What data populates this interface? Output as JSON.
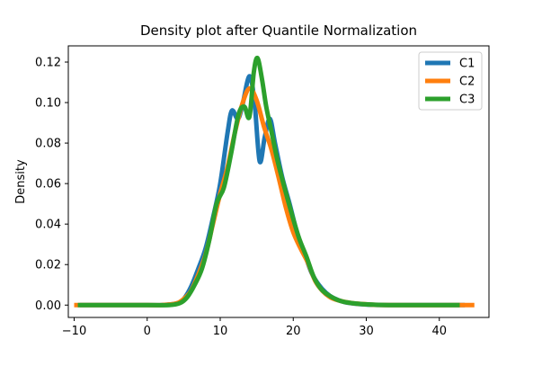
{
  "chart_data": {
    "type": "line",
    "title": "Density plot after Quantile Normalization",
    "xlabel": "",
    "ylabel": "Density",
    "xlim": [
      -10.8,
      46.8
    ],
    "ylim": [
      -0.0061,
      0.128
    ],
    "xticks": [
      -10,
      0,
      10,
      20,
      30,
      40
    ],
    "xtick_labels": [
      "−10",
      "0",
      "10",
      "20",
      "30",
      "40"
    ],
    "yticks": [
      0.0,
      0.02,
      0.04,
      0.06,
      0.08,
      0.1,
      0.12
    ],
    "ytick_labels": [
      "0.00",
      "0.02",
      "0.04",
      "0.06",
      "0.08",
      "0.10",
      "0.12"
    ],
    "grid": false,
    "legend_position": "top-right",
    "series": [
      {
        "name": "C1",
        "color": "#1f77b4",
        "points": [
          [
            -9.2,
            0
          ],
          [
            0,
            0
          ],
          [
            2,
            0
          ],
          [
            4,
            0.0008
          ],
          [
            5,
            0.003
          ],
          [
            6,
            0.009
          ],
          [
            7,
            0.018
          ],
          [
            8,
            0.028
          ],
          [
            9,
            0.043
          ],
          [
            10,
            0.06
          ],
          [
            11,
            0.085
          ],
          [
            11.6,
            0.096
          ],
          [
            12.4,
            0.092
          ],
          [
            13,
            0.098
          ],
          [
            14,
            0.113
          ],
          [
            14.7,
            0.1
          ],
          [
            15.4,
            0.071
          ],
          [
            16.1,
            0.083
          ],
          [
            16.8,
            0.092
          ],
          [
            17.5,
            0.08
          ],
          [
            18.5,
            0.063
          ],
          [
            19.5,
            0.05
          ],
          [
            20.5,
            0.036
          ],
          [
            21.5,
            0.026
          ],
          [
            22.5,
            0.016
          ],
          [
            23.5,
            0.01
          ],
          [
            24.5,
            0.006
          ],
          [
            25.5,
            0.0035
          ],
          [
            27,
            0.0015
          ],
          [
            29,
            0.0005
          ],
          [
            31,
            0.0001
          ],
          [
            34,
            0
          ],
          [
            43.5,
            0
          ]
        ]
      },
      {
        "name": "C2",
        "color": "#ff7f0e",
        "points": [
          [
            -10,
            0
          ],
          [
            0,
            0
          ],
          [
            2,
            0
          ],
          [
            4,
            0.0008
          ],
          [
            5,
            0.003
          ],
          [
            6,
            0.007
          ],
          [
            7,
            0.015
          ],
          [
            8,
            0.025
          ],
          [
            9,
            0.04
          ],
          [
            10,
            0.055
          ],
          [
            11,
            0.068
          ],
          [
            12,
            0.085
          ],
          [
            13,
            0.099
          ],
          [
            14,
            0.107
          ],
          [
            15,
            0.101
          ],
          [
            16,
            0.088
          ],
          [
            17,
            0.077
          ],
          [
            18,
            0.063
          ],
          [
            19,
            0.048
          ],
          [
            20,
            0.036
          ],
          [
            21,
            0.028
          ],
          [
            22,
            0.021
          ],
          [
            23,
            0.012
          ],
          [
            24,
            0.007
          ],
          [
            25,
            0.004
          ],
          [
            26,
            0.0025
          ],
          [
            28,
            0.001
          ],
          [
            30,
            0.0004
          ],
          [
            33,
            0
          ],
          [
            44.8,
            0
          ]
        ]
      },
      {
        "name": "C3",
        "color": "#2ca02c",
        "points": [
          [
            -9.5,
            0
          ],
          [
            0,
            0
          ],
          [
            3,
            0
          ],
          [
            4.5,
            0.001
          ],
          [
            5.5,
            0.004
          ],
          [
            6.5,
            0.01
          ],
          [
            7.5,
            0.018
          ],
          [
            8.5,
            0.032
          ],
          [
            9.5,
            0.05
          ],
          [
            10.5,
            0.058
          ],
          [
            11.5,
            0.075
          ],
          [
            12.5,
            0.094
          ],
          [
            13.3,
            0.098
          ],
          [
            14,
            0.093
          ],
          [
            14.6,
            0.115
          ],
          [
            15.1,
            0.122
          ],
          [
            15.7,
            0.112
          ],
          [
            16.3,
            0.098
          ],
          [
            17,
            0.086
          ],
          [
            17.8,
            0.072
          ],
          [
            18.8,
            0.058
          ],
          [
            19.8,
            0.045
          ],
          [
            20.8,
            0.033
          ],
          [
            21.8,
            0.024
          ],
          [
            22.8,
            0.014
          ],
          [
            23.8,
            0.008
          ],
          [
            25,
            0.0045
          ],
          [
            26.5,
            0.002
          ],
          [
            28.5,
            0.0008
          ],
          [
            31,
            0.0002
          ],
          [
            34,
            0
          ],
          [
            42.8,
            0
          ]
        ]
      }
    ]
  }
}
